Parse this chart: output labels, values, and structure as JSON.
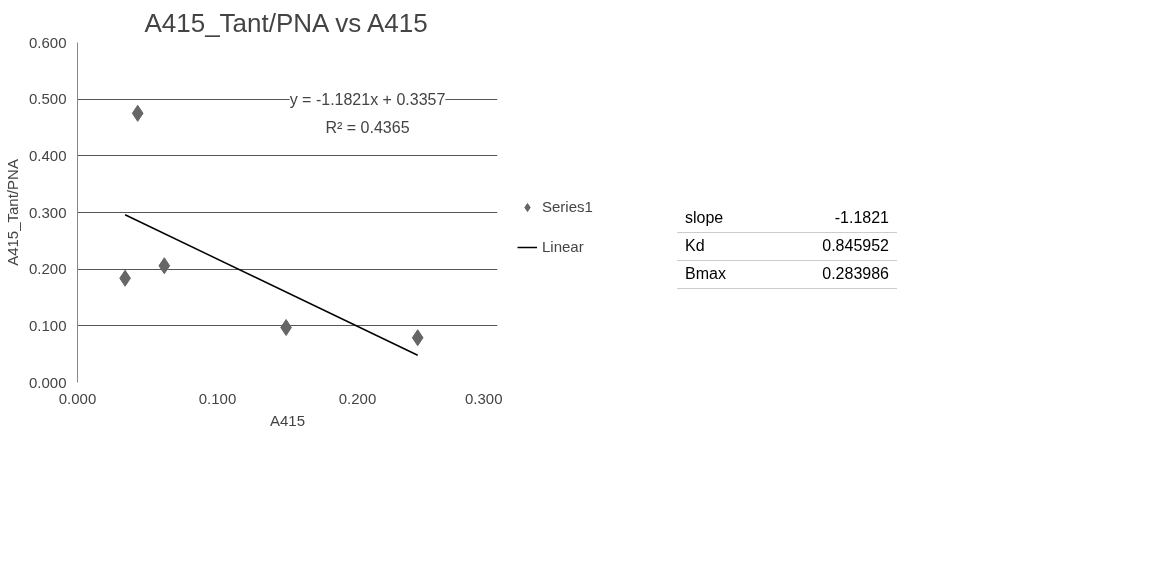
{
  "chart_data": {
    "type": "scatter",
    "title": "A415_Tant/PNA vs A415",
    "xlabel": "A415",
    "ylabel": "A415_Tant/PNA",
    "xlim": [
      0,
      0.3
    ],
    "xticks": [
      {
        "value": 0,
        "label": "0.000"
      },
      {
        "value": 0.1,
        "label": "0.100"
      },
      {
        "value": 0.2,
        "label": "0.200"
      },
      {
        "value": 0.3,
        "label": "0.300"
      }
    ],
    "ylim": [
      0,
      0.6
    ],
    "yticks": [
      {
        "value": 0,
        "label": "0.000"
      },
      {
        "value": 0.1,
        "label": "0.100"
      },
      {
        "value": 0.2,
        "label": "0.200"
      },
      {
        "value": 0.3,
        "label": "0.300"
      },
      {
        "value": 0.4,
        "label": "0.400"
      },
      {
        "value": 0.5,
        "label": "0.500"
      },
      {
        "value": 0.6,
        "label": "0.600"
      }
    ],
    "grid": "y",
    "legend": "right",
    "series": [
      {
        "name": "Series1",
        "color": "#666666",
        "marker": "diamond",
        "x": [
          0.034,
          0.043,
          0.062,
          0.149,
          0.243
        ],
        "values": [
          0.184,
          0.475,
          0.206,
          0.097,
          0.079
        ]
      },
      {
        "name": "Linear",
        "type": "line",
        "marker": "none",
        "color": "#000000",
        "x": [
          0.034,
          0.243
        ],
        "values": [
          0.296,
          0.048
        ]
      }
    ],
    "annotations": [
      "y = -1.1821x + 0.3357",
      "R² = 0.4365",
      "slope",
      "-1.1821",
      "Kd",
      "0.845952",
      "Bmax",
      "0.283986"
    ]
  }
}
